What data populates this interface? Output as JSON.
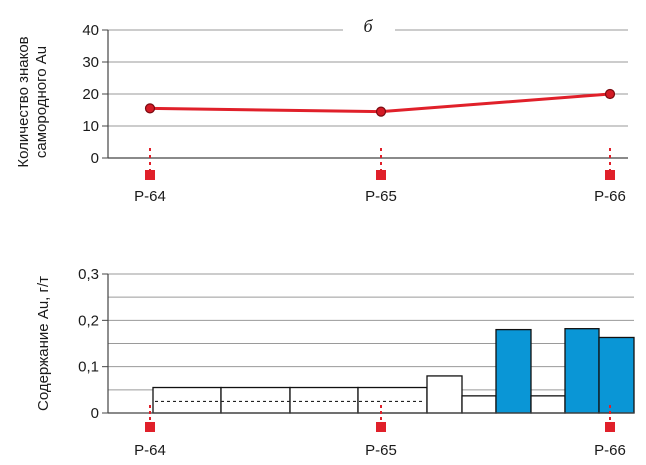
{
  "chart_data": [
    {
      "type": "line",
      "panel_label": "б",
      "ylabel": "Количество знаков самородного Au",
      "ylabel_lines": [
        "Количество знаков",
        "самородного Au"
      ],
      "ylim": [
        0,
        40
      ],
      "yticks": [
        0,
        10,
        20,
        30,
        40
      ],
      "ytick_labels": [
        "0",
        "10",
        "20",
        "30",
        "40"
      ],
      "grid": true,
      "categories": [
        "Р-64",
        "Р-65",
        "Р-66"
      ],
      "values": [
        15.5,
        14.5,
        20
      ],
      "line_color": "#e0202a",
      "marker_fill": "#d31a25",
      "well_marker_color": "#e0202a"
    },
    {
      "type": "bar",
      "ylabel": "Содержание Au, г/т",
      "ylim": [
        0,
        0.3
      ],
      "yticks": [
        0,
        0.1,
        0.2,
        0.3
      ],
      "ytick_labels": [
        "0",
        "0,1",
        "0,2",
        "0,3"
      ],
      "grid": true,
      "wells": [
        "Р-64",
        "Р-65",
        "Р-66"
      ],
      "dashed_level": 0.025,
      "bars": [
        {
          "value": 0.055,
          "fill": "white"
        },
        {
          "value": 0.055,
          "fill": "white"
        },
        {
          "value": 0.055,
          "fill": "white"
        },
        {
          "value": 0.055,
          "fill": "white"
        },
        {
          "value": 0.08,
          "fill": "white"
        },
        {
          "value": 0.037,
          "fill": "white"
        },
        {
          "value": 0.18,
          "fill": "blue"
        },
        {
          "value": 0.037,
          "fill": "white"
        },
        {
          "value": 0.182,
          "fill": "blue"
        },
        {
          "value": 0.163,
          "fill": "blue"
        }
      ],
      "colors": {
        "blue": "#0a96d6",
        "white": "#ffffff",
        "well_marker": "#e0202a"
      }
    }
  ]
}
